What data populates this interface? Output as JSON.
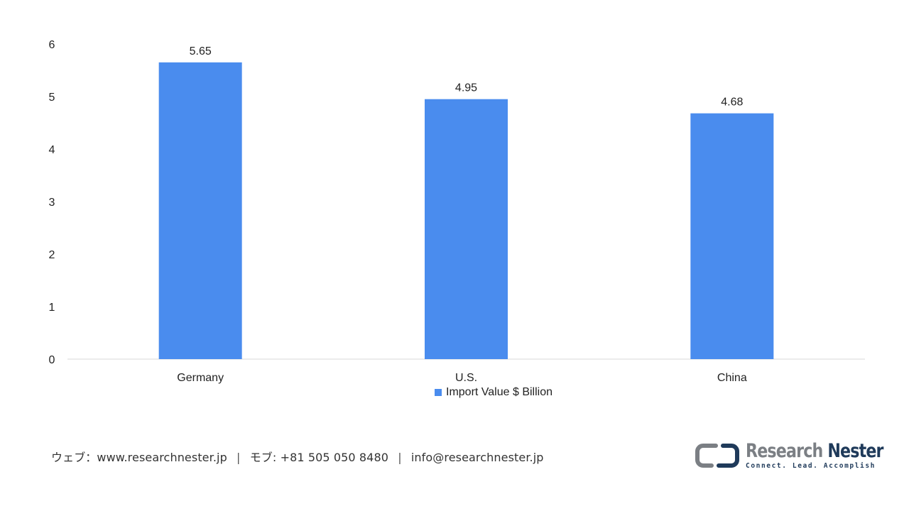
{
  "chart_data": {
    "type": "bar",
    "categories": [
      "Germany",
      "U.S.",
      "China"
    ],
    "series": [
      {
        "name": "Import Value $ Billion",
        "values": [
          5.65,
          4.95,
          4.68
        ],
        "color": "#4a8cee"
      }
    ],
    "data_labels": [
      "5.65",
      "4.95",
      "4.68"
    ],
    "yticks": [
      "0",
      "1",
      "2",
      "3",
      "4",
      "5",
      "6"
    ],
    "ylim": [
      0,
      6
    ],
    "grid": false,
    "legend_position": "bottom"
  },
  "footer": {
    "web": "ウェブ：www.researchnester.jp",
    "phone": "モブ: +81 505 050 8480",
    "email": "info@researchnester.jp"
  },
  "logo": {
    "name_part1": "Research",
    "name_part2": "Nester",
    "tagline": "Connect. Lead. Accomplish",
    "colors": {
      "gray": "#7b7f84",
      "navy": "#1f3a5a"
    }
  }
}
